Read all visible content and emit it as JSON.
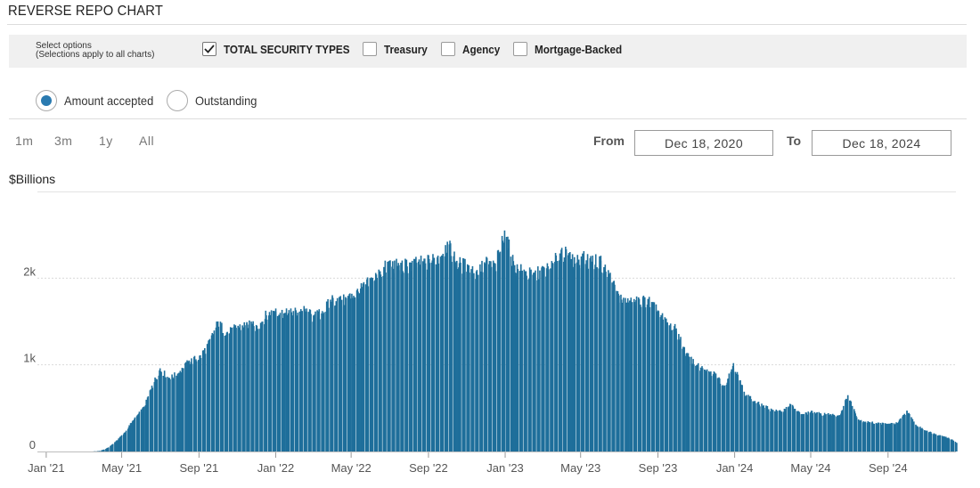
{
  "page_title": "REVERSE REPO CHART",
  "options": {
    "help_line1": "Select options",
    "help_line2": "(Selections apply to all charts)",
    "checkboxes": [
      {
        "label": "TOTAL SECURITY TYPES",
        "checked": true
      },
      {
        "label": "Treasury",
        "checked": false
      },
      {
        "label": "Agency",
        "checked": false
      },
      {
        "label": "Mortgage-Backed",
        "checked": false
      }
    ]
  },
  "radios": [
    {
      "label": "Amount accepted",
      "selected": true
    },
    {
      "label": "Outstanding",
      "selected": false
    }
  ],
  "range_buttons": [
    "1m",
    "3m",
    "1y",
    "All"
  ],
  "date_range": {
    "from_label": "From",
    "from_value": "Dec 18, 2020",
    "to_label": "To",
    "to_value": "Dec 18, 2024"
  },
  "colors": {
    "bar": "#1f6f9b",
    "accent": "#2a7ab0",
    "grid": "#d9d9d9"
  },
  "chart_data": {
    "type": "bar",
    "ylabel": "$Billions",
    "yticks": [
      0,
      1000,
      2000
    ],
    "ytick_labels": [
      "0",
      "1k",
      "2k"
    ],
    "ylim": [
      0,
      3000
    ],
    "xlim": [
      "2020-12-18",
      "2024-12-18"
    ],
    "xticks": [
      {
        "date": "2021-01-01",
        "label": "Jan '21"
      },
      {
        "date": "2021-05-01",
        "label": "May '21"
      },
      {
        "date": "2021-09-01",
        "label": "Sep '21"
      },
      {
        "date": "2022-01-01",
        "label": "Jan '22"
      },
      {
        "date": "2022-05-01",
        "label": "May '22"
      },
      {
        "date": "2022-09-01",
        "label": "Sep '22"
      },
      {
        "date": "2023-01-01",
        "label": "Jan '23"
      },
      {
        "date": "2023-05-01",
        "label": "May '23"
      },
      {
        "date": "2023-09-01",
        "label": "Sep '23"
      },
      {
        "date": "2024-01-01",
        "label": "Jan '24"
      },
      {
        "date": "2024-05-01",
        "label": "May '24"
      },
      {
        "date": "2024-09-01",
        "label": "Sep '24"
      }
    ],
    "series": [
      {
        "values": [
          {
            "x": "2020-12-18",
            "y": 0
          },
          {
            "x": "2021-01-15",
            "y": 0
          },
          {
            "x": "2021-02-15",
            "y": 0
          },
          {
            "x": "2021-03-15",
            "y": 0
          },
          {
            "x": "2021-03-25",
            "y": 5
          },
          {
            "x": "2021-04-05",
            "y": 30
          },
          {
            "x": "2021-04-15",
            "y": 80
          },
          {
            "x": "2021-04-25",
            "y": 150
          },
          {
            "x": "2021-05-05",
            "y": 220
          },
          {
            "x": "2021-05-15",
            "y": 330
          },
          {
            "x": "2021-05-25",
            "y": 420
          },
          {
            "x": "2021-06-05",
            "y": 520
          },
          {
            "x": "2021-06-17",
            "y": 760
          },
          {
            "x": "2021-06-30",
            "y": 960
          },
          {
            "x": "2021-07-15",
            "y": 850
          },
          {
            "x": "2021-08-01",
            "y": 930
          },
          {
            "x": "2021-08-15",
            "y": 1050
          },
          {
            "x": "2021-09-01",
            "y": 1100
          },
          {
            "x": "2021-09-15",
            "y": 1250
          },
          {
            "x": "2021-09-30",
            "y": 1500
          },
          {
            "x": "2021-10-15",
            "y": 1380
          },
          {
            "x": "2021-11-01",
            "y": 1450
          },
          {
            "x": "2021-11-15",
            "y": 1480
          },
          {
            "x": "2021-12-01",
            "y": 1450
          },
          {
            "x": "2021-12-15",
            "y": 1580
          },
          {
            "x": "2021-12-31",
            "y": 1650
          },
          {
            "x": "2022-01-15",
            "y": 1600
          },
          {
            "x": "2022-02-01",
            "y": 1630
          },
          {
            "x": "2022-02-15",
            "y": 1640
          },
          {
            "x": "2022-03-01",
            "y": 1570
          },
          {
            "x": "2022-03-15",
            "y": 1620
          },
          {
            "x": "2022-03-31",
            "y": 1780
          },
          {
            "x": "2022-04-15",
            "y": 1750
          },
          {
            "x": "2022-05-01",
            "y": 1820
          },
          {
            "x": "2022-05-15",
            "y": 1880
          },
          {
            "x": "2022-05-31",
            "y": 1990
          },
          {
            "x": "2022-06-15",
            "y": 2080
          },
          {
            "x": "2022-06-30",
            "y": 2200
          },
          {
            "x": "2022-07-15",
            "y": 2150
          },
          {
            "x": "2022-08-01",
            "y": 2180
          },
          {
            "x": "2022-08-15",
            "y": 2190
          },
          {
            "x": "2022-09-01",
            "y": 2220
          },
          {
            "x": "2022-09-15",
            "y": 2260
          },
          {
            "x": "2022-09-30",
            "y": 2420
          },
          {
            "x": "2022-10-15",
            "y": 2200
          },
          {
            "x": "2022-11-01",
            "y": 2160
          },
          {
            "x": "2022-11-15",
            "y": 2080
          },
          {
            "x": "2022-12-01",
            "y": 2200
          },
          {
            "x": "2022-12-15",
            "y": 2150
          },
          {
            "x": "2022-12-30",
            "y": 2550
          },
          {
            "x": "2023-01-15",
            "y": 2150
          },
          {
            "x": "2023-02-01",
            "y": 2080
          },
          {
            "x": "2023-02-15",
            "y": 2050
          },
          {
            "x": "2023-03-01",
            "y": 2110
          },
          {
            "x": "2023-03-15",
            "y": 2150
          },
          {
            "x": "2023-03-31",
            "y": 2350
          },
          {
            "x": "2023-04-15",
            "y": 2220
          },
          {
            "x": "2023-05-01",
            "y": 2250
          },
          {
            "x": "2023-05-15",
            "y": 2230
          },
          {
            "x": "2023-06-01",
            "y": 2200
          },
          {
            "x": "2023-06-15",
            "y": 2050
          },
          {
            "x": "2023-06-30",
            "y": 1800
          },
          {
            "x": "2023-07-15",
            "y": 1720
          },
          {
            "x": "2023-08-01",
            "y": 1760
          },
          {
            "x": "2023-08-15",
            "y": 1760
          },
          {
            "x": "2023-09-01",
            "y": 1620
          },
          {
            "x": "2023-09-15",
            "y": 1480
          },
          {
            "x": "2023-09-29",
            "y": 1420
          },
          {
            "x": "2023-10-15",
            "y": 1130
          },
          {
            "x": "2023-11-01",
            "y": 1000
          },
          {
            "x": "2023-11-15",
            "y": 930
          },
          {
            "x": "2023-12-01",
            "y": 900
          },
          {
            "x": "2023-12-15",
            "y": 760
          },
          {
            "x": "2023-12-29",
            "y": 1020
          },
          {
            "x": "2024-01-15",
            "y": 690
          },
          {
            "x": "2024-02-01",
            "y": 580
          },
          {
            "x": "2024-02-15",
            "y": 530
          },
          {
            "x": "2024-03-01",
            "y": 480
          },
          {
            "x": "2024-03-15",
            "y": 460
          },
          {
            "x": "2024-03-28",
            "y": 550
          },
          {
            "x": "2024-04-15",
            "y": 430
          },
          {
            "x": "2024-05-01",
            "y": 460
          },
          {
            "x": "2024-05-15",
            "y": 440
          },
          {
            "x": "2024-06-01",
            "y": 430
          },
          {
            "x": "2024-06-15",
            "y": 420
          },
          {
            "x": "2024-06-28",
            "y": 650
          },
          {
            "x": "2024-07-15",
            "y": 370
          },
          {
            "x": "2024-08-01",
            "y": 340
          },
          {
            "x": "2024-08-15",
            "y": 330
          },
          {
            "x": "2024-09-01",
            "y": 320
          },
          {
            "x": "2024-09-15",
            "y": 330
          },
          {
            "x": "2024-09-30",
            "y": 470
          },
          {
            "x": "2024-10-15",
            "y": 300
          },
          {
            "x": "2024-11-01",
            "y": 240
          },
          {
            "x": "2024-11-15",
            "y": 200
          },
          {
            "x": "2024-12-01",
            "y": 170
          },
          {
            "x": "2024-12-10",
            "y": 140
          },
          {
            "x": "2024-12-18",
            "y": 100
          }
        ]
      }
    ]
  }
}
